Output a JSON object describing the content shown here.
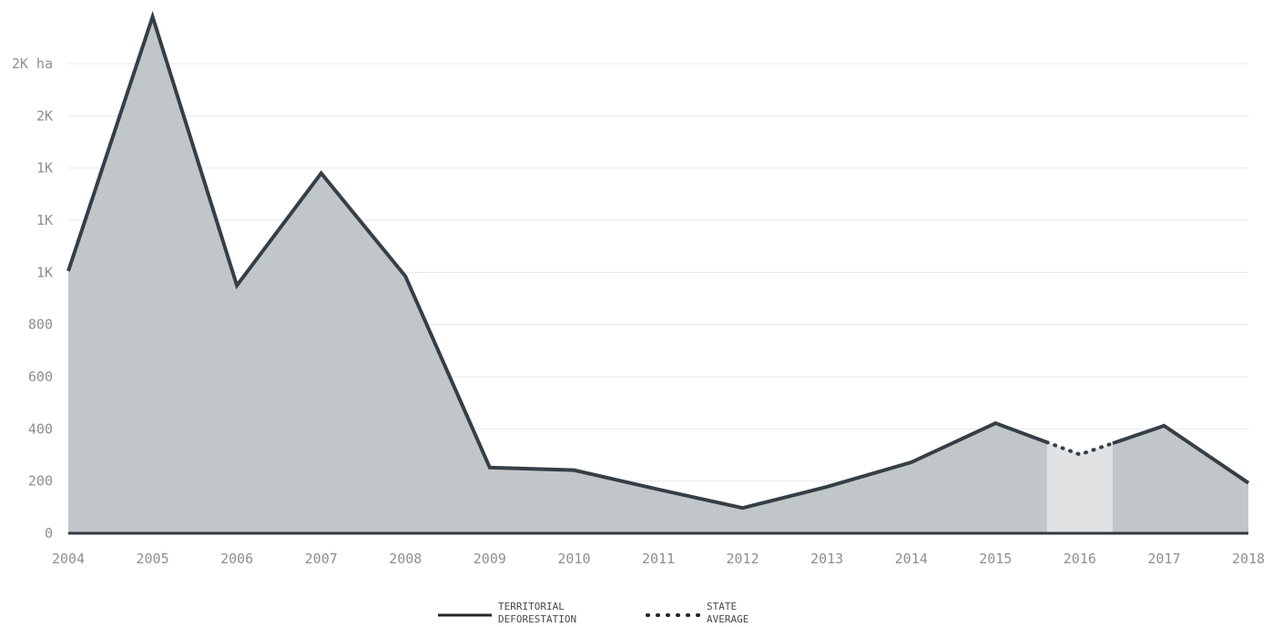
{
  "chart_data": {
    "type": "area",
    "x": [
      "2004",
      "2005",
      "2006",
      "2007",
      "2008",
      "2009",
      "2010",
      "2011",
      "2012",
      "2013",
      "2014",
      "2015",
      "2016",
      "2017",
      "2018"
    ],
    "series": [
      {
        "name": "TERRITORIAL DEFORESTATION",
        "values": [
          1005,
          1980,
          950,
          1380,
          985,
          252,
          242,
          168,
          97,
          178,
          272,
          422,
          302,
          412,
          193
        ]
      }
    ],
    "highlight": {
      "x": "2016",
      "style": "dotted"
    },
    "ylim": [
      0,
      1800
    ],
    "y_ticks": [
      {
        "value": 0,
        "label": "0"
      },
      {
        "value": 200,
        "label": "200"
      },
      {
        "value": 400,
        "label": "400"
      },
      {
        "value": 600,
        "label": "600"
      },
      {
        "value": 800,
        "label": "800"
      },
      {
        "value": 1000,
        "label": "1K"
      },
      {
        "value": 1200,
        "label": "1K"
      },
      {
        "value": 1400,
        "label": "1K"
      },
      {
        "value": 1600,
        "label": "2K"
      },
      {
        "value": 1800,
        "label": "2K ha"
      }
    ],
    "grid": true,
    "legend": {
      "placement": "bottom-center",
      "items": [
        {
          "line1": "TERRITORIAL",
          "line2": "DEFORESTATION",
          "style": "solid"
        },
        {
          "line1": "STATE",
          "line2": "AVERAGE",
          "style": "dotted"
        }
      ]
    },
    "colors": {
      "line": "#343f47",
      "area": "#c1c6c8",
      "highlight_band": "#e0e2e3",
      "grid": "#e6e8e9",
      "axis": "#2f3a42",
      "tick_text": "#8a8f93"
    }
  }
}
